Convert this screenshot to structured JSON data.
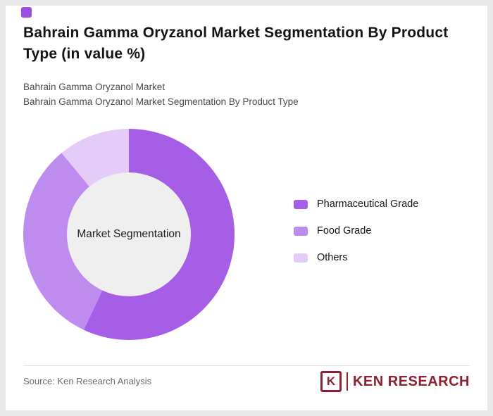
{
  "accent": {
    "color": "#9b4fe0"
  },
  "header": {
    "title": "Bahrain Gamma Oryzanol Market Segmentation By Product Type (in value %)",
    "subtitle1": "Bahrain Gamma Oryzanol Market",
    "subtitle2": "Bahrain Gamma Oryzanol Market Segmentation By Product Type"
  },
  "chart_data": {
    "type": "pie",
    "donut": true,
    "title": "Bahrain Gamma Oryzanol Market Segmentation By Product Type (in value %)",
    "center_label": "Market Segmentation",
    "labels": [
      "Pharmaceutical Grade",
      "Food Grade",
      "Others"
    ],
    "values": [
      57,
      32,
      11
    ],
    "colors": [
      "#a75ee6",
      "#bd8cee",
      "#e5ccf8"
    ],
    "start_angle_deg": 0,
    "direction": "clockwise",
    "legend_position": "right",
    "hole_color": "#efefef"
  },
  "footer": {
    "source": "Source: Ken Research Analysis",
    "brand_k": "K",
    "brand": "KEN RESEARCH"
  }
}
